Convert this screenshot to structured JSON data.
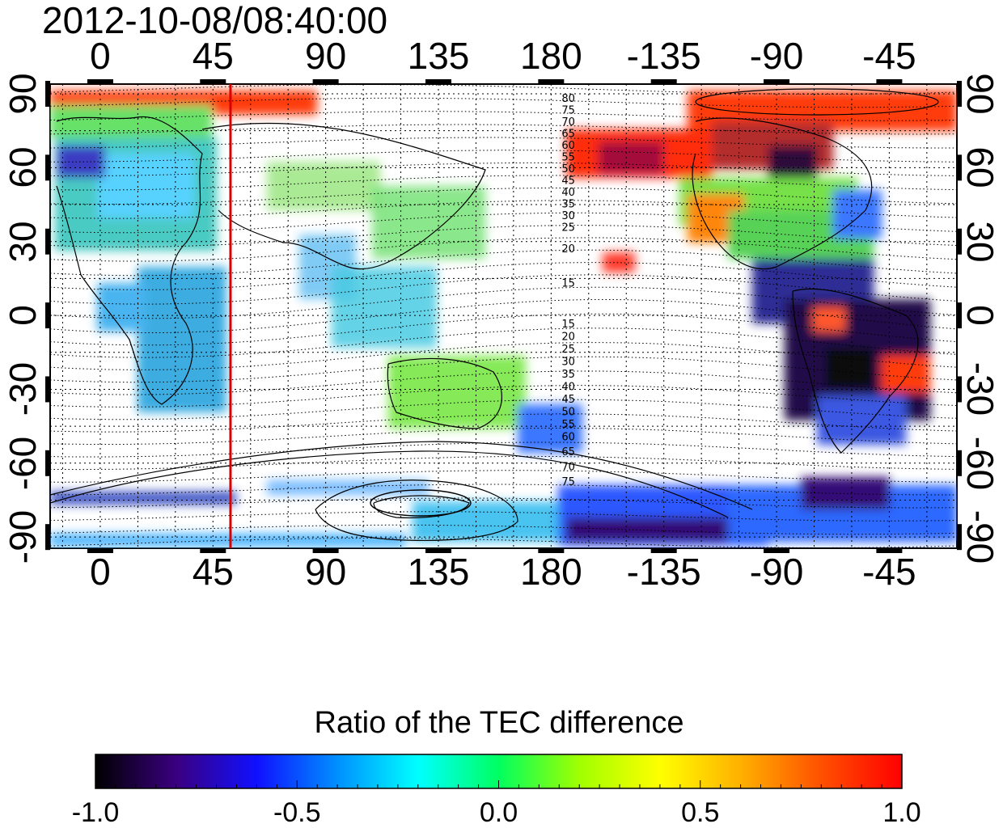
{
  "title": "2012-10-08/08:40:00",
  "colorbar": {
    "title": "Ratio of the TEC difference",
    "ticks": [
      "-1.0",
      "-0.5",
      "0.0",
      "0.5",
      "1.0"
    ],
    "range": [
      -1.0,
      1.0
    ],
    "stops": [
      "#000000",
      "#3a0080",
      "#1010ff",
      "#0090ff",
      "#00ffff",
      "#00ff60",
      "#a0ff00",
      "#ffff00",
      "#ffb000",
      "#ff5000",
      "#ff0000"
    ]
  },
  "axes": {
    "lon_labels": [
      "0",
      "45",
      "90",
      "135",
      "180",
      "-135",
      "-90",
      "-45"
    ],
    "lon_values": [
      0,
      45,
      90,
      135,
      180,
      225,
      270,
      315
    ],
    "lat_labels": [
      "90",
      "60",
      "30",
      "0",
      "-30",
      "-60",
      "-90"
    ],
    "lat_values": [
      90,
      60,
      30,
      0,
      -30,
      -60,
      -90
    ],
    "lon_range": [
      -20,
      342
    ],
    "lat_range": [
      -90,
      90
    ]
  },
  "terminator_line": {
    "longitude": 52,
    "color": "#dd0000"
  },
  "contour_labels_north": [
    "80",
    "75",
    "70",
    "65",
    "60",
    "55",
    "50",
    "45",
    "40",
    "35",
    "30",
    "25",
    "20",
    "15"
  ],
  "contour_labels_south": [
    "15",
    "20",
    "25",
    "30",
    "35",
    "40",
    "45",
    "50",
    "55",
    "60",
    "65",
    "70",
    "75"
  ],
  "contour_label_lon": 183,
  "colors": {
    "high_ratio": "#ff0000",
    "low_ratio": "#1a0030",
    "neutral": "#60ff80"
  }
}
